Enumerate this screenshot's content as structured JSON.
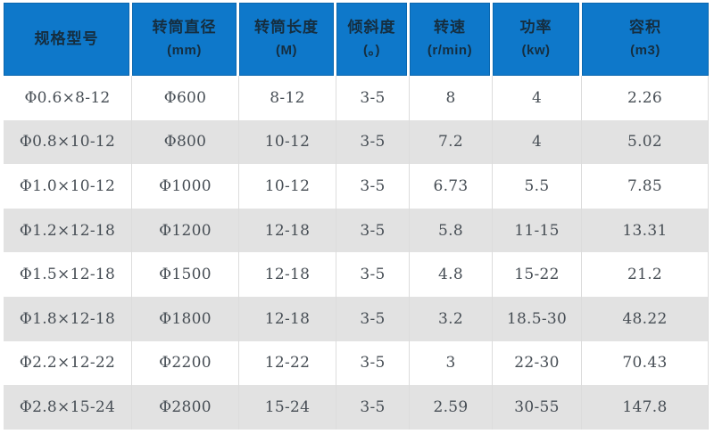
{
  "colors": {
    "header_bg": "#0e78ca",
    "header_edge": "#0a66ae",
    "header_text": "#152e40",
    "body_text": "#474e55",
    "alt_row_bg": "#e2e2e2",
    "grid_line": "#dcdcdc",
    "page_bg": "#ffffff"
  },
  "chart_data": {
    "type": "table",
    "columns": [
      {
        "title": "规格型号",
        "unit": ""
      },
      {
        "title": "转筒直径",
        "unit": "(mm)"
      },
      {
        "title": "转筒长度",
        "unit": "(M)"
      },
      {
        "title": "倾斜度",
        "unit": "(。)"
      },
      {
        "title": "转速",
        "unit": "(r/min)"
      },
      {
        "title": "功率",
        "unit": "(kw)"
      },
      {
        "title": "容积",
        "unit": "(m3)"
      }
    ],
    "rows": [
      [
        "Φ0.6×8-12",
        "Φ600",
        "8-12",
        "3-5",
        "8",
        "4",
        "2.26"
      ],
      [
        "Φ0.8×10-12",
        "Φ800",
        "10-12",
        "3-5",
        "7.2",
        "4",
        "5.02"
      ],
      [
        "Φ1.0×10-12",
        "Φ1000",
        "10-12",
        "3-5",
        "6.73",
        "5.5",
        "7.85"
      ],
      [
        "Φ1.2×12-18",
        "Φ1200",
        "12-18",
        "3-5",
        "5.8",
        "11-15",
        "13.31"
      ],
      [
        "Φ1.5×12-18",
        "Φ1500",
        "12-18",
        "3-5",
        "4.8",
        "15-22",
        "21.2"
      ],
      [
        "Φ1.8×12-18",
        "Φ1800",
        "12-18",
        "3-5",
        "3.2",
        "18.5-30",
        "48.22"
      ],
      [
        "Φ2.2×12-22",
        "Φ2200",
        "12-22",
        "3-5",
        "3",
        "22-30",
        "70.43"
      ],
      [
        "Φ2.8×15-24",
        "Φ2800",
        "15-24",
        "3-5",
        "2.59",
        "30-55",
        "147.8"
      ]
    ]
  }
}
